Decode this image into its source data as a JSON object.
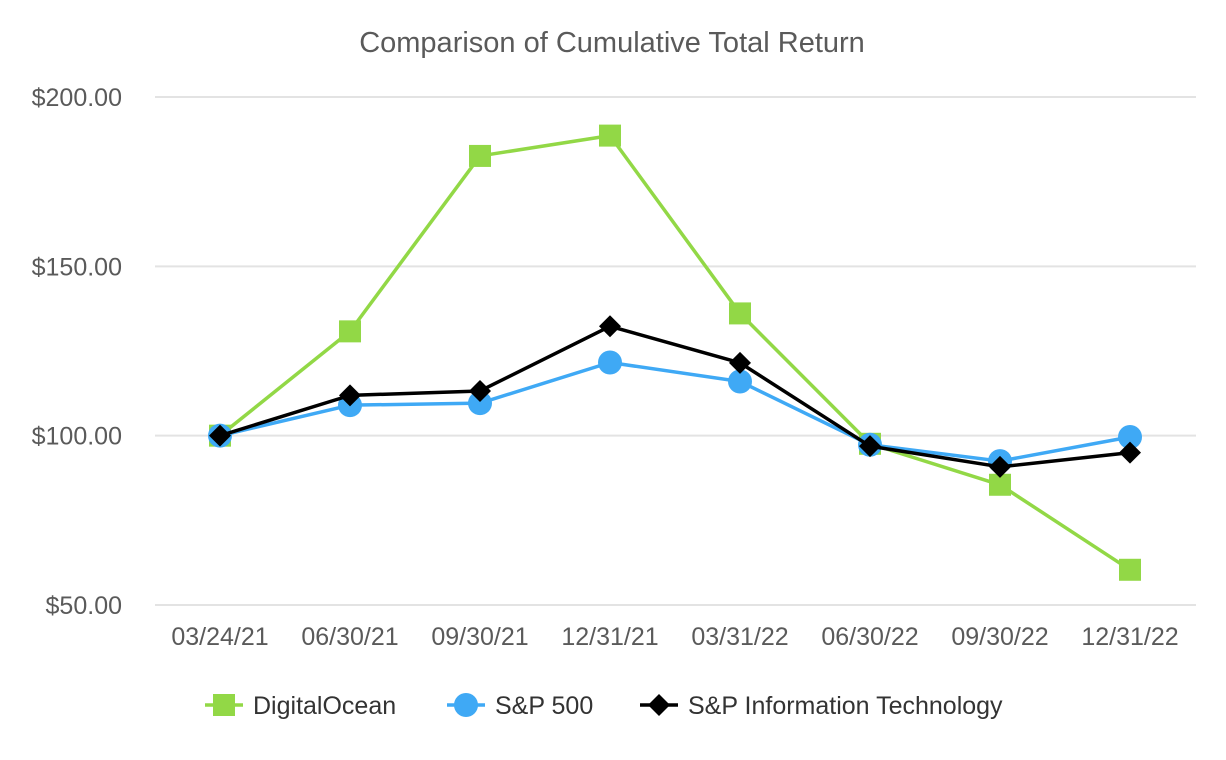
{
  "chart_data": {
    "type": "line",
    "title": "Comparison of Cumulative Total Return",
    "xlabel": "",
    "ylabel": "",
    "categories": [
      "03/24/21",
      "06/30/21",
      "09/30/21",
      "12/31/21",
      "03/31/22",
      "06/30/22",
      "09/30/22",
      "12/31/22"
    ],
    "y_ticks": [
      "$50.00",
      "$100.00",
      "$150.00",
      "$200.00"
    ],
    "y_tick_values": [
      50,
      100,
      150,
      200
    ],
    "ylim": [
      50,
      200
    ],
    "grid": true,
    "legend_position": "bottom",
    "series": [
      {
        "name": "DigitalOcean",
        "color": "#92d846",
        "marker": "square",
        "values": [
          100.0,
          130.8,
          182.6,
          188.6,
          136.1,
          97.6,
          85.5,
          60.4
        ]
      },
      {
        "name": "S&P 500",
        "color": "#3fa9f5",
        "marker": "circle",
        "values": [
          100.0,
          109.0,
          109.6,
          121.6,
          116.0,
          97.3,
          92.5,
          99.6
        ]
      },
      {
        "name": "S&P Information Technology",
        "color": "#000000",
        "marker": "diamond",
        "values": [
          100.0,
          111.9,
          113.2,
          132.3,
          121.5,
          96.9,
          90.8,
          95.0
        ]
      }
    ]
  }
}
